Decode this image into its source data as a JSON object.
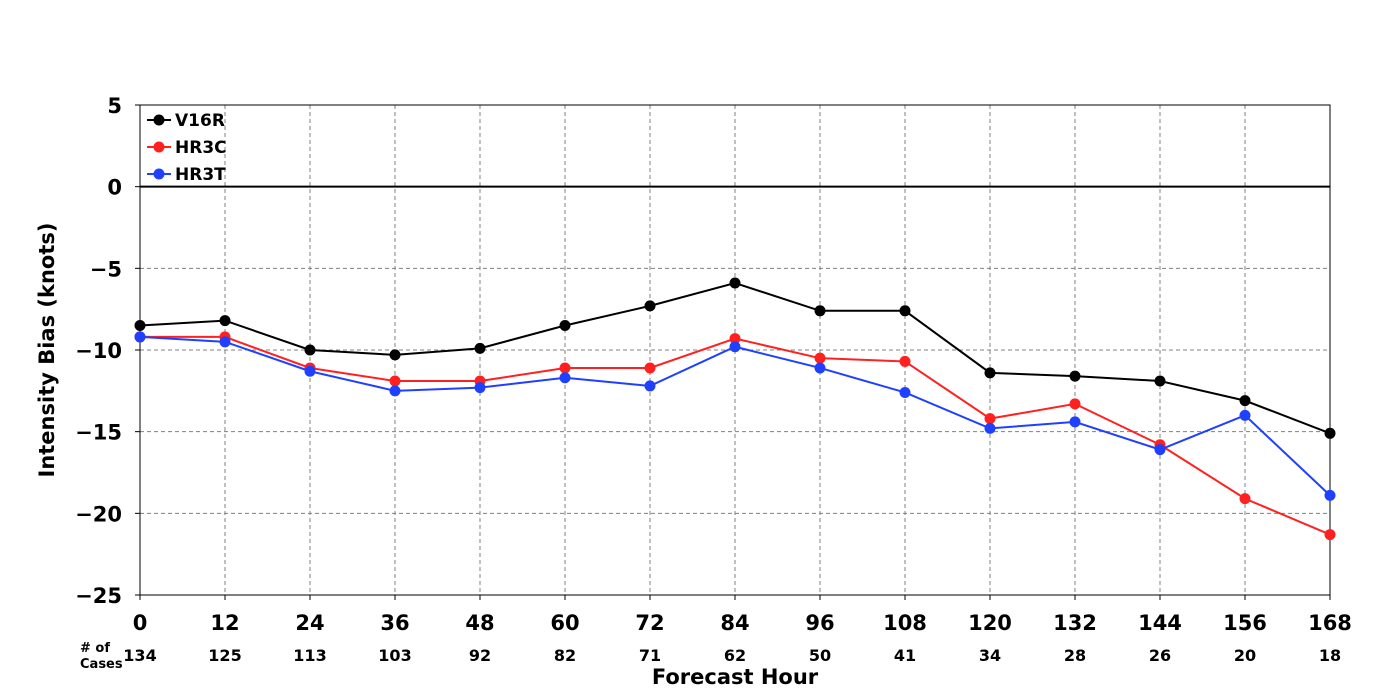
{
  "chart_data": {
    "type": "line",
    "xlabel": "Forecast Hour",
    "ylabel": "Intensity Bias (knots)",
    "x": [
      0,
      12,
      24,
      36,
      48,
      60,
      72,
      84,
      96,
      108,
      120,
      132,
      144,
      156,
      168
    ],
    "xlim": [
      0,
      168
    ],
    "ylim": [
      -25,
      5
    ],
    "xticks": [
      "0",
      "12",
      "24",
      "36",
      "48",
      "60",
      "72",
      "84",
      "96",
      "108",
      "120",
      "132",
      "144",
      "156",
      "168"
    ],
    "yticks": [
      "5",
      "0",
      "−5",
      "−10",
      "−15",
      "−20",
      "−25"
    ],
    "grid": true,
    "zero_line": true,
    "legend_position": "top-left",
    "cases_caption": [
      "# of",
      "Cases"
    ],
    "cases": [
      "134",
      "125",
      "113",
      "103",
      "92",
      "82",
      "71",
      "62",
      "50",
      "41",
      "34",
      "28",
      "26",
      "20",
      "18"
    ],
    "series": [
      {
        "name": "V16R",
        "color": "#000000",
        "values": [
          -8.5,
          -8.2,
          -10.0,
          -10.3,
          -9.9,
          -8.5,
          -7.3,
          -5.9,
          -7.6,
          -7.6,
          -11.4,
          -11.6,
          -11.9,
          -13.1,
          -15.1
        ]
      },
      {
        "name": "HR3C",
        "color": "#ff2020",
        "values": [
          -9.2,
          -9.2,
          -11.1,
          -11.9,
          -11.9,
          -11.1,
          -11.1,
          -9.3,
          -10.5,
          -10.7,
          -14.2,
          -13.3,
          -15.8,
          -19.1,
          -21.3
        ]
      },
      {
        "name": "HR3T",
        "color": "#2040ff",
        "values": [
          -9.2,
          -9.5,
          -11.3,
          -12.5,
          -12.3,
          -11.7,
          -12.2,
          -9.8,
          -11.1,
          -12.6,
          -14.8,
          -14.4,
          -16.1,
          -14.0,
          -18.9
        ]
      }
    ]
  }
}
